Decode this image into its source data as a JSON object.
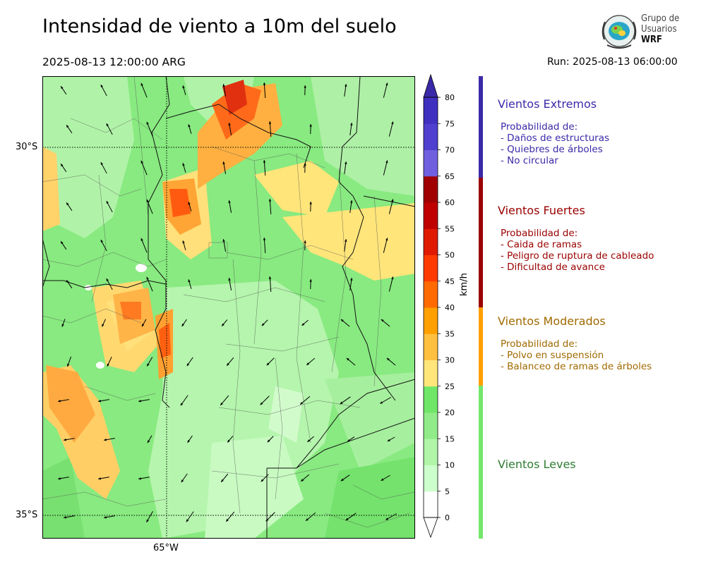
{
  "header": {
    "title": "Intensidad de viento a 10m del suelo",
    "valid_time": "2025-08-13 12:00:00 ARG",
    "run": "Run: 2025-08-13 06:00:00"
  },
  "logo": {
    "line1": "Grupo de",
    "line2": "Usuarios",
    "line3": "WRF"
  },
  "map": {
    "lat_labels": [
      "30°S",
      "35°S"
    ],
    "lon_labels": [
      "65°W"
    ]
  },
  "colorbar": {
    "unit": "km/h",
    "ticks": [
      0,
      5,
      10,
      15,
      20,
      25,
      30,
      35,
      40,
      45,
      50,
      55,
      60,
      65,
      70,
      75,
      80
    ],
    "colors": [
      "#ffffff",
      "#ccffcc",
      "#b0f5a8",
      "#90eb88",
      "#70e668",
      "#ffe57a",
      "#ffc040",
      "#ffa000",
      "#ff6a00",
      "#ff3a00",
      "#e01a00",
      "#c00000",
      "#a00000",
      "#7060e0",
      "#5040d0",
      "#4030c0"
    ]
  },
  "categories": [
    {
      "title": "Vientos Extremos",
      "color": "#3a2aa8",
      "desc": [
        "Probabilidad de:",
        "- Daños de estructuras",
        "- Quiebres de árboles",
        "- No circular"
      ]
    },
    {
      "title": "Vientos Fuertes",
      "color": "#9a0000",
      "desc": [
        "Probabilidad de:",
        "- Caida de ramas",
        "- Peligro de ruptura de cableado",
        "- Dificultad de avance"
      ]
    },
    {
      "title": "Vientos Moderados",
      "color": "#a06a00",
      "desc": [
        "Probabilidad de:",
        "- Polvo en suspensión",
        "- Balanceo de ramas de árboles"
      ]
    },
    {
      "title": "Vientos Leves",
      "color": "#2e7d32",
      "desc": []
    }
  ]
}
